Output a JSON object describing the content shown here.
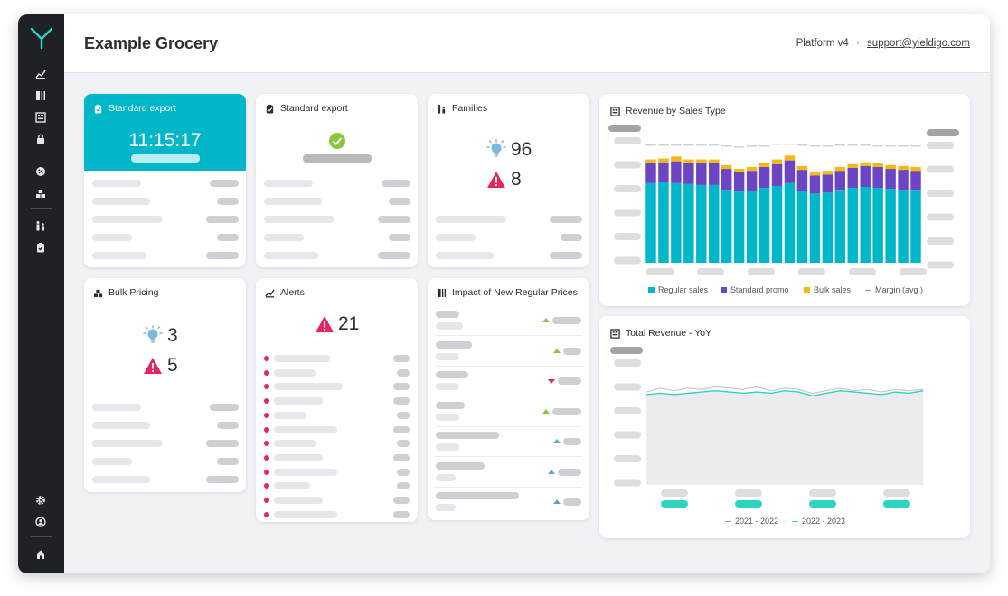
{
  "header": {
    "title": "Example Grocery",
    "platform": "Platform v4",
    "separator": "·",
    "support_link": "support@yieldigo.com"
  },
  "cards": {
    "export1": {
      "title": "Standard export",
      "time": "11:15:17"
    },
    "export2": {
      "title": "Standard export"
    },
    "families": {
      "title": "Families",
      "ideas": "96",
      "alerts": "8"
    },
    "bulk": {
      "title": "Bulk Pricing",
      "ideas": "3",
      "alerts": "5"
    },
    "alerts": {
      "title": "Alerts",
      "count": "21"
    },
    "impact": {
      "title": "Impact of New Regular Prices"
    }
  },
  "colors": {
    "teal": "#00b7c9",
    "purple": "#6b45c4",
    "yellow": "#f5b915",
    "alert_red": "#e8245c",
    "success_green": "#8cc63f",
    "margin_gray": "#bdbdbd",
    "yoy_prev": "#c8c8c8",
    "yoy_curr": "#2dd4bf"
  },
  "chart_data": [
    {
      "type": "bar",
      "title": "Revenue by Sales Type",
      "series": [
        {
          "name": "Regular sales",
          "values": [
            84,
            85,
            84,
            83,
            82,
            82,
            77,
            75,
            76,
            79,
            81,
            84,
            76,
            73,
            74,
            77,
            79,
            80,
            79,
            78,
            77,
            77
          ]
        },
        {
          "name": "Standard promo",
          "values": [
            21,
            21,
            23,
            22,
            23,
            23,
            22,
            21,
            21,
            22,
            23,
            24,
            22,
            19,
            19,
            20,
            21,
            22,
            22,
            21,
            21,
            20
          ]
        },
        {
          "name": "Bulk sales",
          "values": [
            4,
            4,
            5,
            4,
            4,
            4,
            4,
            3,
            4,
            4,
            5,
            5,
            4,
            4,
            4,
            4,
            4,
            4,
            4,
            4,
            4,
            4
          ]
        },
        {
          "name": "Margin (avg.)",
          "values": [
            124,
            124,
            124,
            124,
            124,
            124,
            123,
            122,
            123,
            123,
            125,
            125,
            124,
            123,
            123,
            124,
            124,
            124,
            123,
            123,
            123,
            123
          ]
        }
      ],
      "ylim": [
        0,
        140
      ],
      "legend": [
        "Regular sales",
        "Standard promo",
        "Bulk sales",
        "Margin (avg.)"
      ]
    },
    {
      "type": "line",
      "title": "Total Revenue - YoY",
      "series": [
        {
          "name": "2021 - 2022",
          "values": [
            73,
            76,
            74,
            76,
            75,
            77,
            76,
            75,
            77,
            74,
            76,
            75,
            72,
            74,
            76,
            74,
            75,
            73,
            75,
            74,
            75
          ]
        },
        {
          "name": "2022 - 2023",
          "values": [
            71,
            72,
            71,
            72,
            73,
            74,
            73,
            72,
            73,
            72,
            74,
            73,
            70,
            72,
            74,
            73,
            72,
            71,
            73,
            72,
            74
          ]
        }
      ],
      "ylim": [
        0,
        100
      ],
      "legend": [
        "2021 - 2022",
        "2022 - 2023"
      ]
    }
  ]
}
